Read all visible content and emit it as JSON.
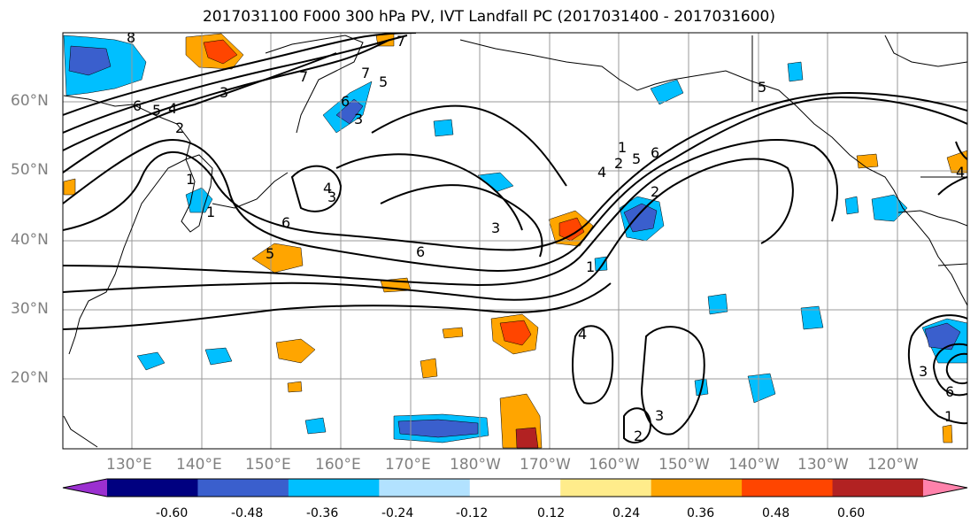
{
  "title": "2017031100 F000 300 hPa PV, IVT Landfall PC (2017031400 - 2017031600)",
  "axes": {
    "lat_labels": [
      "60°N",
      "50°N",
      "40°N",
      "30°N",
      "20°N"
    ],
    "lon_labels": [
      "130°E",
      "140°E",
      "150°E",
      "160°E",
      "170°E",
      "180°W",
      "170°W",
      "160°W",
      "150°W",
      "140°W",
      "130°W",
      "120°W"
    ]
  },
  "colorbar": {
    "labels": [
      "-0.60",
      "-0.48",
      "-0.36",
      "-0.24",
      "-0.12",
      "0.12",
      "0.24",
      "0.36",
      "0.48",
      "0.60"
    ],
    "colors": [
      "#9b30d0",
      "#000080",
      "#3a5fcd",
      "#00bfff",
      "#b2e2ff",
      "#ffffff",
      "#ffec8b",
      "#ffa500",
      "#ff4500",
      "#b22222",
      "#ff82ab"
    ]
  },
  "contour_labels": [
    "8",
    "7",
    "6",
    "5",
    "4",
    "3",
    "2",
    "1",
    "7",
    "6",
    "5",
    "3",
    "1",
    "6",
    "5",
    "4",
    "3",
    "2",
    "1",
    "6",
    "5",
    "4",
    "3",
    "2",
    "1",
    "7",
    "6",
    "5",
    "4",
    "3",
    "2",
    "1",
    "6",
    "4",
    "3",
    "2",
    "1",
    "1",
    "1",
    "2",
    "1",
    "5",
    "6",
    "6",
    "5",
    "3",
    "1",
    "3",
    "1",
    "2",
    "1"
  ],
  "colors": {
    "grid": "#999999",
    "contour": "#000000",
    "coast": "#000000"
  }
}
